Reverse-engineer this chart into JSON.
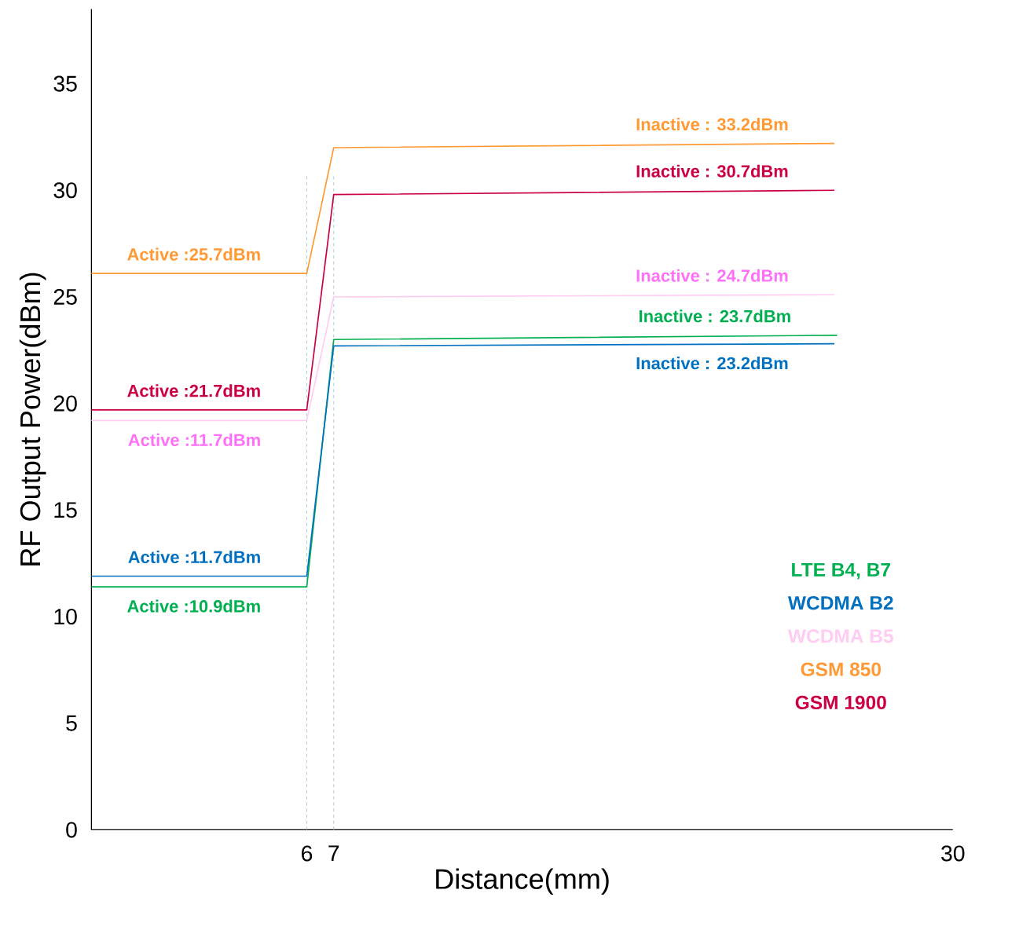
{
  "chart_data": {
    "type": "line",
    "xlabel": "Distance(mm)",
    "ylabel": "RF Output Power(dBm)",
    "xlim": [
      -2,
      30
    ],
    "xticks": [
      6,
      7,
      30
    ],
    "ylim": [
      0,
      38.5
    ],
    "yticks": [
      0,
      5,
      10,
      15,
      20,
      25,
      30,
      35
    ],
    "grid": false,
    "legend": "bottom right",
    "marker": "none",
    "line_style": "solid",
    "series": [
      {
        "name": "LTE B4, B7",
        "color": "#00b050",
        "x": [
          -2,
          6,
          7,
          25.7
        ],
        "values": [
          11.4,
          11.4,
          23.0,
          23.2
        ]
      },
      {
        "name": "WCDMA B2",
        "color": "#0070c0",
        "x": [
          -2,
          6,
          7,
          25.6
        ],
        "values": [
          11.9,
          11.9,
          22.7,
          22.8
        ]
      },
      {
        "name": "WCDMA B5",
        "color": "#ffccf2",
        "x": [
          -2,
          6,
          7,
          25.6
        ],
        "values": [
          19.2,
          19.2,
          25.0,
          25.1
        ]
      },
      {
        "name": "GSM 850",
        "color": "#ff9933",
        "x": [
          -2,
          6,
          7,
          25.6
        ],
        "values": [
          26.1,
          26.1,
          32.0,
          32.2
        ]
      },
      {
        "name": "GSM 1900",
        "color": "#cc0044",
        "x": [
          -2,
          6,
          7,
          25.6
        ],
        "values": [
          19.7,
          19.7,
          29.8,
          30.0
        ]
      }
    ],
    "ref_lines": [
      {
        "axis": "x",
        "value": 6,
        "color": "#a8d0d8",
        "line_style": "dashed"
      },
      {
        "axis": "x",
        "value": 7,
        "color": "#a8d0d8",
        "line_style": "dashed"
      }
    ],
    "annotations": [
      {
        "text": "Active :25.7dBm",
        "x": 6,
        "y": 26.1
      },
      {
        "text": "Active :21.7dBm",
        "x": 6,
        "y": 19.7
      },
      {
        "text": "Active :11.7dBm",
        "x": 6,
        "y": 19.2
      },
      {
        "text": "Active :11.7dBm",
        "x": 6,
        "y": 11.9
      },
      {
        "text": "Active :10.9dBm",
        "x": 6,
        "y": 11.4
      },
      {
        "text": "Inactive  : 33.2dBm",
        "x": 25.6,
        "y": 32.2
      },
      {
        "text": "Inactive  : 30.7dBm",
        "x": 25.6,
        "y": 30.0
      },
      {
        "text": "Inactive  : 24.7dBm",
        "x": 25.6,
        "y": 25.1
      },
      {
        "text": "Inactive  : 23.7dBm",
        "x": 25.7,
        "y": 23.2
      },
      {
        "text": "Inactive  : 23.2dBm",
        "x": 25.6,
        "y": 22.8
      }
    ]
  }
}
